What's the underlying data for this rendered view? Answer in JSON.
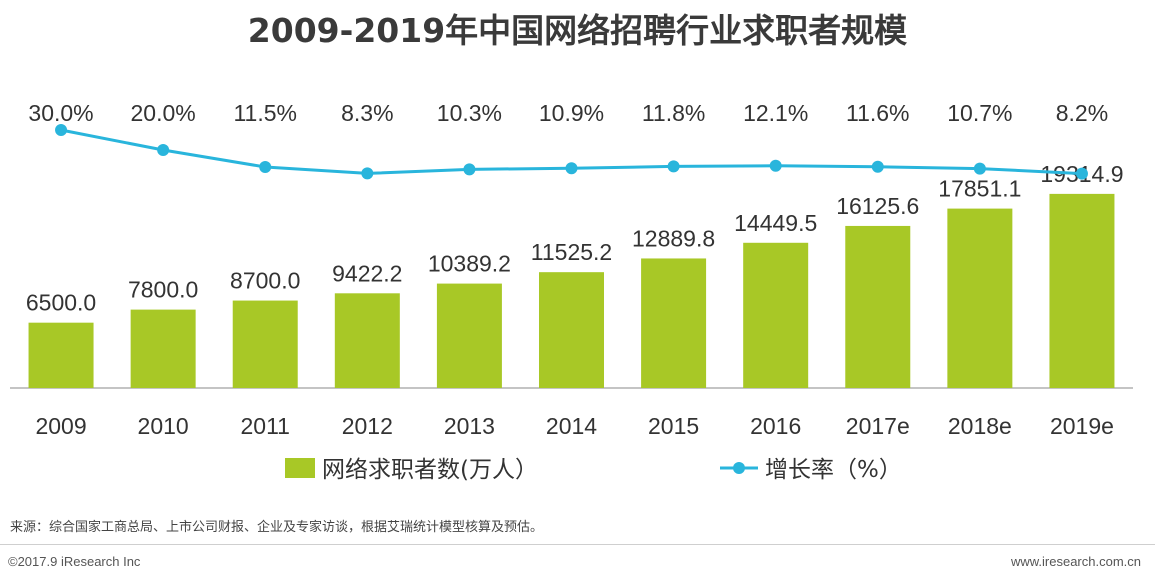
{
  "chart_data": {
    "type": "bar",
    "title": "2009-2019年中国网络招聘行业求职者规模",
    "categories": [
      "2009",
      "2010",
      "2011",
      "2012",
      "2013",
      "2014",
      "2015",
      "2016",
      "2017e",
      "2018e",
      "2019e"
    ],
    "series": [
      {
        "name": "网络求职者数(万人）",
        "type": "bar",
        "color": "#a8c826",
        "values": [
          6500.0,
          7800.0,
          8700.0,
          9422.2,
          10389.2,
          11525.2,
          12889.8,
          14449.5,
          16125.6,
          17851.1,
          19314.9
        ],
        "labels": [
          "6500.0",
          "7800.0",
          "8700.0",
          "9422.2",
          "10389.2",
          "11525.2",
          "12889.8",
          "14449.5",
          "16125.6",
          "17851.1",
          "19314.9"
        ]
      },
      {
        "name": "增长率（%）",
        "type": "line",
        "color": "#29b5dc",
        "values": [
          30.0,
          20.0,
          11.5,
          8.3,
          10.3,
          10.9,
          11.8,
          12.1,
          11.6,
          10.7,
          8.2
        ],
        "labels": [
          "30.0%",
          "20.0%",
          "11.5%",
          "8.3%",
          "10.3%",
          "10.9%",
          "11.8%",
          "12.1%",
          "11.6%",
          "10.7%",
          "8.2%"
        ]
      }
    ],
    "bar_ylim": [
      0,
      20000
    ],
    "line_ylim": [
      0,
      100
    ],
    "legend_position": "bottom-center",
    "grid": false
  },
  "footer": {
    "source": "来源：综合国家工商总局、上市公司财报、企业及专家访谈，根据艾瑞统计模型核算及预估。",
    "copyright": "©2017.9 iResearch Inc",
    "website": "www.iresearch.com.cn"
  }
}
